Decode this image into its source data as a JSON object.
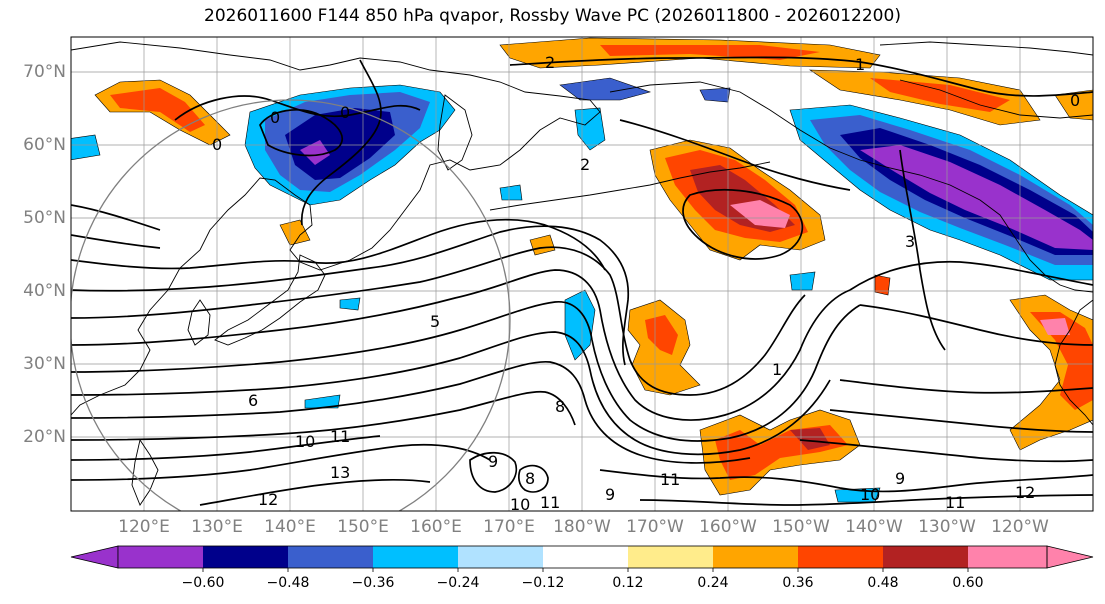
{
  "title": "2026011600 F144 850 hPa qvapor, Rossby Wave PC (2026011800 - 2026012200)",
  "lat_labels": [
    "70°N",
    "60°N",
    "50°N",
    "40°N",
    "30°N",
    "20°N"
  ],
  "lon_labels": [
    "120°E",
    "130°E",
    "140°E",
    "150°E",
    "160°E",
    "170°E",
    "180°W",
    "170°W",
    "160°W",
    "150°W",
    "140°W",
    "130°W",
    "120°W"
  ],
  "colorbar": {
    "ticks": [
      "−0.60",
      "−0.48",
      "−0.36",
      "−0.24",
      "−0.12",
      "0.12",
      "0.24",
      "0.36",
      "0.48",
      "0.60"
    ],
    "colors": [
      "#9932cc",
      "#00008b",
      "#3a5fcd",
      "#00bfff",
      "#b0e2ff",
      "#ffffff",
      "#ffec8b",
      "#ffa500",
      "#ff4500",
      "#b22222",
      "#ff82ab"
    ]
  },
  "contour_labels": [
    "0",
    "0",
    "0",
    "2",
    "2",
    "1",
    "0",
    "5",
    "6",
    "10",
    "11",
    "13",
    "12",
    "9",
    "8",
    "10",
    "11",
    "9",
    "11",
    "10",
    "9",
    "11",
    "12",
    "8",
    "3",
    "1"
  ]
}
